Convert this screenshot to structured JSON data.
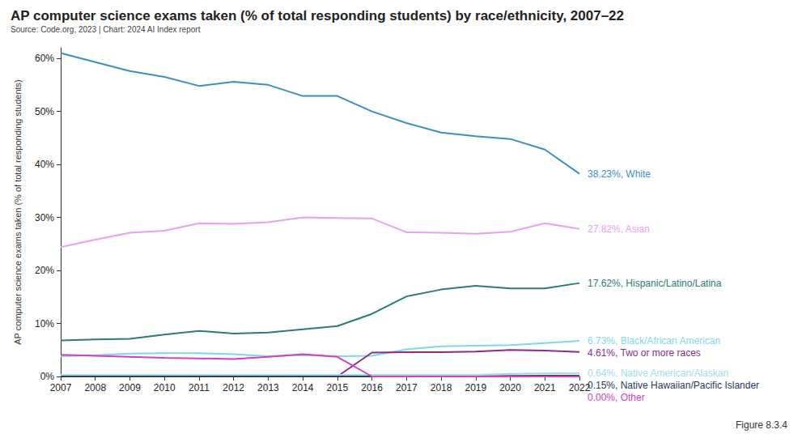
{
  "chart_data": {
    "type": "line",
    "title": "AP computer science exams taken (% of total responding students) by race/ethnicity, 2007–22",
    "subtitle": "Source: Code.org, 2023 | Chart: 2024 AI Index report",
    "y_label": "AP computer science exams taken (% of total responding students)",
    "annotations": [
      "Figure 8.3.4"
    ],
    "categories": [
      "2007",
      "2008",
      "2009",
      "2010",
      "2011",
      "2012",
      "2013",
      "2014",
      "2015",
      "2016",
      "2017",
      "2018",
      "2019",
      "2020",
      "2021",
      "2022"
    ],
    "ylim": [
      0,
      62
    ],
    "yticks": [
      {
        "value": 0,
        "label": "0%"
      },
      {
        "value": 10,
        "label": "10%"
      },
      {
        "value": 20,
        "label": "20%"
      },
      {
        "value": 30,
        "label": "30%"
      },
      {
        "value": 40,
        "label": "40%"
      },
      {
        "value": 50,
        "label": "50%"
      },
      {
        "value": 60,
        "label": "60%"
      }
    ],
    "grid": false,
    "series": [
      {
        "name": "White",
        "color": "#3a8fc0",
        "label": "38.23%, White",
        "values": [
          61,
          59.3,
          57.6,
          56.5,
          54.8,
          55.6,
          55,
          52.9,
          52.9,
          50,
          47.8,
          46,
          45.3,
          44.8,
          42.8,
          38.23
        ]
      },
      {
        "name": "Asian",
        "color": "#e8a0f0",
        "label": "27.82%, Asian",
        "values": [
          24.4,
          25.8,
          27.1,
          27.5,
          28.9,
          28.8,
          29.1,
          30,
          29.9,
          29.8,
          27.2,
          27.1,
          26.9,
          27.3,
          28.9,
          27.82
        ]
      },
      {
        "name": "Hispanic/Latino/Latina",
        "color": "#2a7a78",
        "label": "17.62%, Hispanic/Latino/Latina",
        "values": [
          6.8,
          7.0,
          7.1,
          7.9,
          8.6,
          8.1,
          8.3,
          8.9,
          9.5,
          11.8,
          15.1,
          16.4,
          17.1,
          16.6,
          16.6,
          17.62
        ]
      },
      {
        "name": "Black/African American",
        "color": "#7fd8ea",
        "label": "6.73%, Black/African American",
        "values": [
          3.8,
          4.0,
          4.3,
          4.4,
          4.4,
          4.2,
          3.8,
          4.0,
          3.8,
          3.9,
          5.1,
          5.7,
          5.8,
          5.9,
          6.3,
          6.73
        ]
      },
      {
        "name": "Two or more races",
        "color": "#8b2a8f",
        "label": "4.61%, Two or more races",
        "values": [
          0,
          0,
          0,
          0,
          0,
          0,
          0,
          0,
          0,
          4.5,
          4.6,
          4.6,
          4.7,
          5.0,
          4.9,
          4.61
        ]
      },
      {
        "name": "Native American/Alaskan",
        "color": "#9fdcec",
        "label": "0.64%, Native American/Alaskan",
        "values": [
          0.3,
          0.3,
          0.3,
          0.3,
          0.3,
          0.3,
          0.3,
          0.3,
          0.3,
          0.3,
          0.3,
          0.3,
          0.3,
          0.5,
          0.6,
          0.64
        ]
      },
      {
        "name": "Native Hawaiian/Pacific Islander",
        "color": "#2a3a5a",
        "label": "0.15%, Native Hawaiian/Pacific Islander",
        "values": [
          0,
          0,
          0,
          0,
          0,
          0,
          0,
          0,
          0,
          0,
          0,
          0,
          0,
          0.1,
          0.15,
          0.15
        ]
      },
      {
        "name": "Other",
        "color": "#d040c0",
        "label": "0.00%, Other",
        "values": [
          4.1,
          3.9,
          3.7,
          3.5,
          3.4,
          3.3,
          3.7,
          4.2,
          3.7,
          0,
          0,
          0,
          0,
          0,
          0,
          0.0
        ]
      }
    ]
  }
}
